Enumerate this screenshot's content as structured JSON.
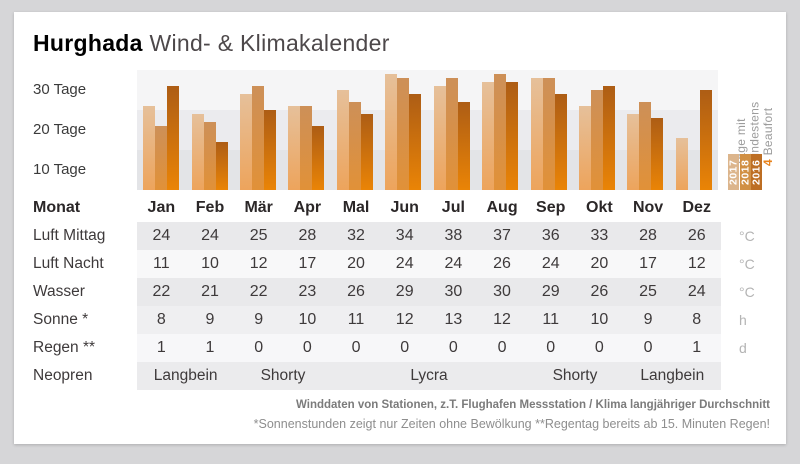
{
  "title": {
    "brand": "Hurghada",
    "rest": "Wind- & Klimakalender"
  },
  "chart": {
    "y_axis_labels": [
      "30 Tage",
      "20 Tage",
      "10 Tage"
    ],
    "legend": {
      "line1": "Tage mit",
      "line2": "mindestens",
      "line3_num": "4",
      "line3_word": "Beaufort",
      "years": [
        {
          "label": "2017",
          "color": "#dcb58c"
        },
        {
          "label": "2018",
          "color": "#d19044"
        },
        {
          "label": "2016",
          "color": "#bd6e23"
        }
      ]
    }
  },
  "chart_data": {
    "type": "bar",
    "title": "Tage mit mindestens 4 Beaufort",
    "categories": [
      "Jan",
      "Feb",
      "Mär",
      "Apr",
      "Mal",
      "Jun",
      "Jul",
      "Aug",
      "Sep",
      "Okt",
      "Nov",
      "Dez"
    ],
    "series": [
      {
        "name": "2017",
        "color": "#eda45c",
        "values": [
          21,
          19,
          24,
          21,
          25,
          29,
          26,
          27,
          28,
          21,
          19,
          13
        ]
      },
      {
        "name": "2018",
        "color": "#e19138",
        "values": [
          16,
          17,
          26,
          21,
          22,
          28,
          28,
          29,
          28,
          25,
          22,
          null
        ]
      },
      {
        "name": "2016",
        "color": "#ea8406",
        "values": [
          26,
          12,
          20,
          16,
          19,
          24,
          22,
          27,
          24,
          26,
          18,
          25
        ]
      }
    ],
    "ylabel": "Tage",
    "ylim": [
      0,
      30
    ],
    "ytick_interval": 10,
    "legend_position": "right"
  },
  "table": {
    "month_header_label": "Monat",
    "months": [
      "Jan",
      "Feb",
      "Mär",
      "Apr",
      "Mal",
      "Jun",
      "Jul",
      "Aug",
      "Sep",
      "Okt",
      "Nov",
      "Dez"
    ],
    "rows": [
      {
        "label": "Luft Mittag",
        "values": [
          "24",
          "24",
          "25",
          "28",
          "32",
          "34",
          "38",
          "37",
          "36",
          "33",
          "28",
          "26"
        ],
        "unit": "°C",
        "stripe": "stripe-a"
      },
      {
        "label": "Luft Nacht",
        "values": [
          "11",
          "10",
          "12",
          "17",
          "20",
          "24",
          "24",
          "26",
          "24",
          "20",
          "17",
          "12"
        ],
        "unit": "°C",
        "stripe": "stripe-b"
      },
      {
        "label": "Wasser",
        "values": [
          "22",
          "21",
          "22",
          "23",
          "26",
          "29",
          "30",
          "30",
          "29",
          "26",
          "25",
          "24"
        ],
        "unit": "°C",
        "stripe": "stripe-a"
      },
      {
        "label": "Sonne *",
        "values": [
          "8",
          "9",
          "9",
          "10",
          "11",
          "12",
          "13",
          "12",
          "11",
          "10",
          "9",
          "8"
        ],
        "unit": "h",
        "stripe": "stripe-c"
      },
      {
        "label": "Regen **",
        "values": [
          "1",
          "1",
          "0",
          "0",
          "0",
          "0",
          "0",
          "0",
          "0",
          "0",
          "0",
          "1"
        ],
        "unit": "d",
        "stripe": "stripe-d"
      }
    ],
    "neopren": {
      "label": "Neopren",
      "stripe": "stripe-e",
      "segments": [
        {
          "text": "Langbein",
          "span": 2
        },
        {
          "text": "Shorty",
          "span": 2
        },
        {
          "text": "Lycra",
          "span": 4
        },
        {
          "text": "Shorty",
          "span": 2
        },
        {
          "text": "Langbein",
          "span": 2
        }
      ]
    }
  },
  "footer": {
    "line1": "Winddaten von Stationen, z.T. Flughafen Messstation / Klima langjähriger Durchschnitt",
    "line2": "*Sonnenstunden zeigt nur Zeiten ohne Bewölkung  **Regentag bereits ab 15. Minuten Regen!"
  },
  "colors": {
    "accent_orange": "#e8831c",
    "band_light": "#f5f5f6",
    "band_mid": "#ebebee",
    "band_dark": "#e3e4e7"
  }
}
